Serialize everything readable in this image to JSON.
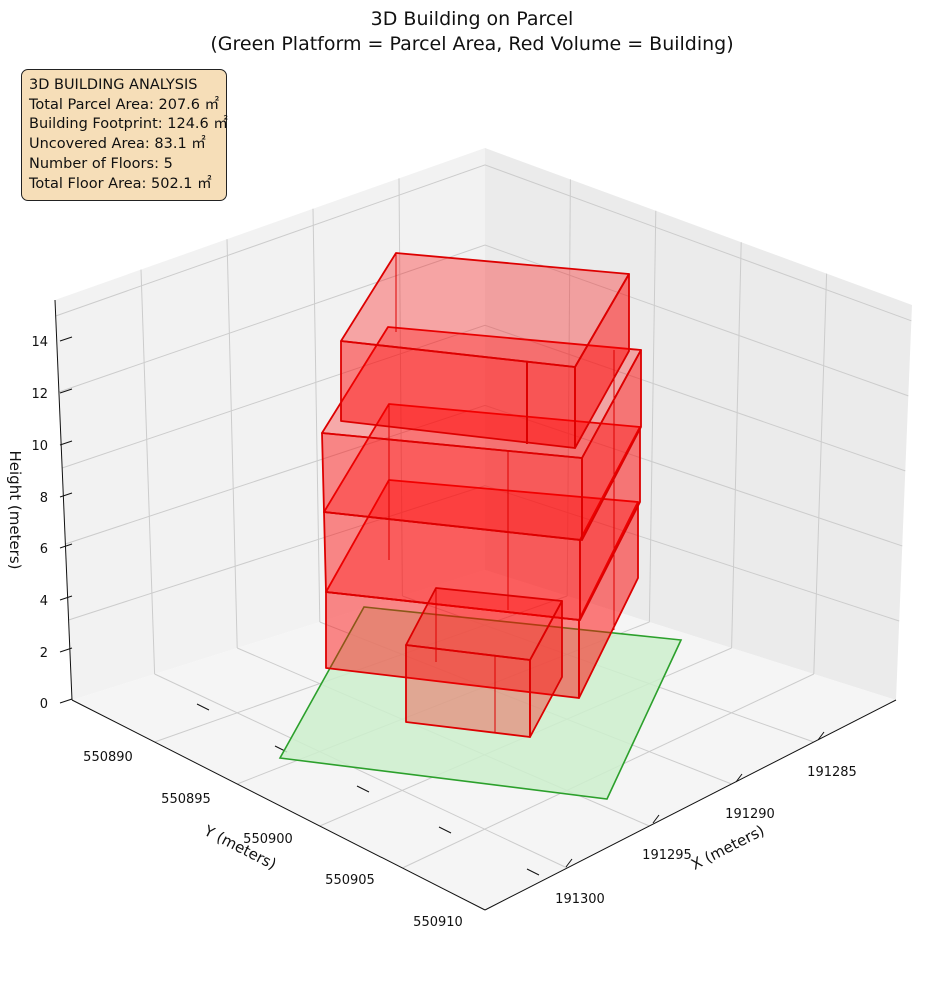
{
  "title_line1": "3D Building on Parcel",
  "title_line2": "(Green Platform = Parcel Area, Red Volume = Building)",
  "info": {
    "heading": "3D BUILDING ANALYSIS",
    "line1": "Total Parcel Area: 207.6 ㎡",
    "line2": "Building Footprint: 124.6 ㎡",
    "line3": "Uncovered Area: 83.1 ㎡",
    "line4": "Number of Floors: 5",
    "line5": "Total Floor Area: 502.1 ㎡"
  },
  "colors": {
    "parcel_fill": "#ccefcc",
    "parcel_edge": "#2ca02c",
    "building_fill": "#ff0000",
    "building_edge": "#dd0000",
    "pane": "#f2f2f2",
    "grid": "#cccccc"
  },
  "chart_data": {
    "type": "3d-volume",
    "xlabel": "X (meters)",
    "ylabel": "Y (meters)",
    "zlabel": "Height (meters)",
    "x_ticks": [
      "191285",
      "191290",
      "191295",
      "191300"
    ],
    "y_ticks": [
      "550890",
      "550895",
      "550900",
      "550905",
      "550910"
    ],
    "z_ticks": [
      "0",
      "2",
      "4",
      "6",
      "8",
      "10",
      "12",
      "14"
    ],
    "parcel_area_m2": 207.6,
    "building_footprint_m2": 124.6,
    "uncovered_area_m2": 83.1,
    "floors": 5,
    "total_floor_area_m2": 502.1
  }
}
